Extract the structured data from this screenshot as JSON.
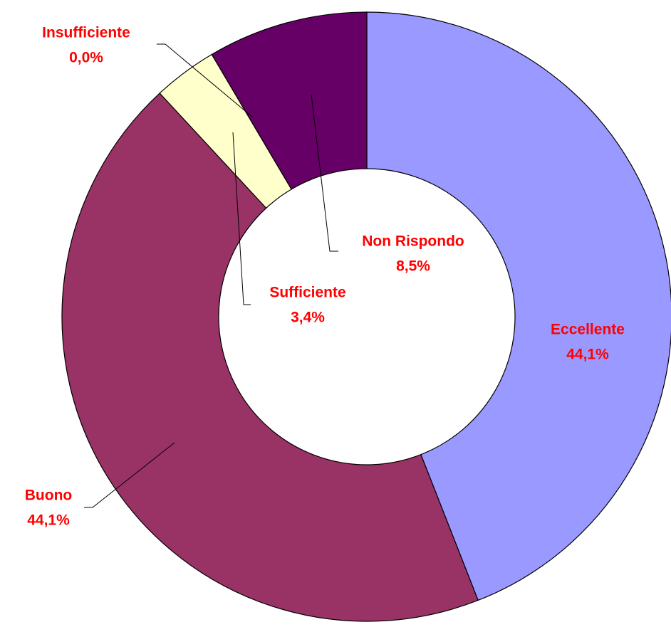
{
  "chart_data": {
    "type": "donut",
    "categories": [
      "Eccellente",
      "Buono",
      "Sufficiente",
      "Insufficiente",
      "Non Rispondo"
    ],
    "values": [
      44.1,
      44.1,
      3.4,
      0.0,
      8.5
    ],
    "value_labels": [
      "44,1%",
      "44,1%",
      "3,4%",
      "0,0%",
      "8,5%"
    ],
    "colors": [
      "#9999ff",
      "#993366",
      "#ffffcc",
      "#ccffff",
      "#660066"
    ]
  }
}
